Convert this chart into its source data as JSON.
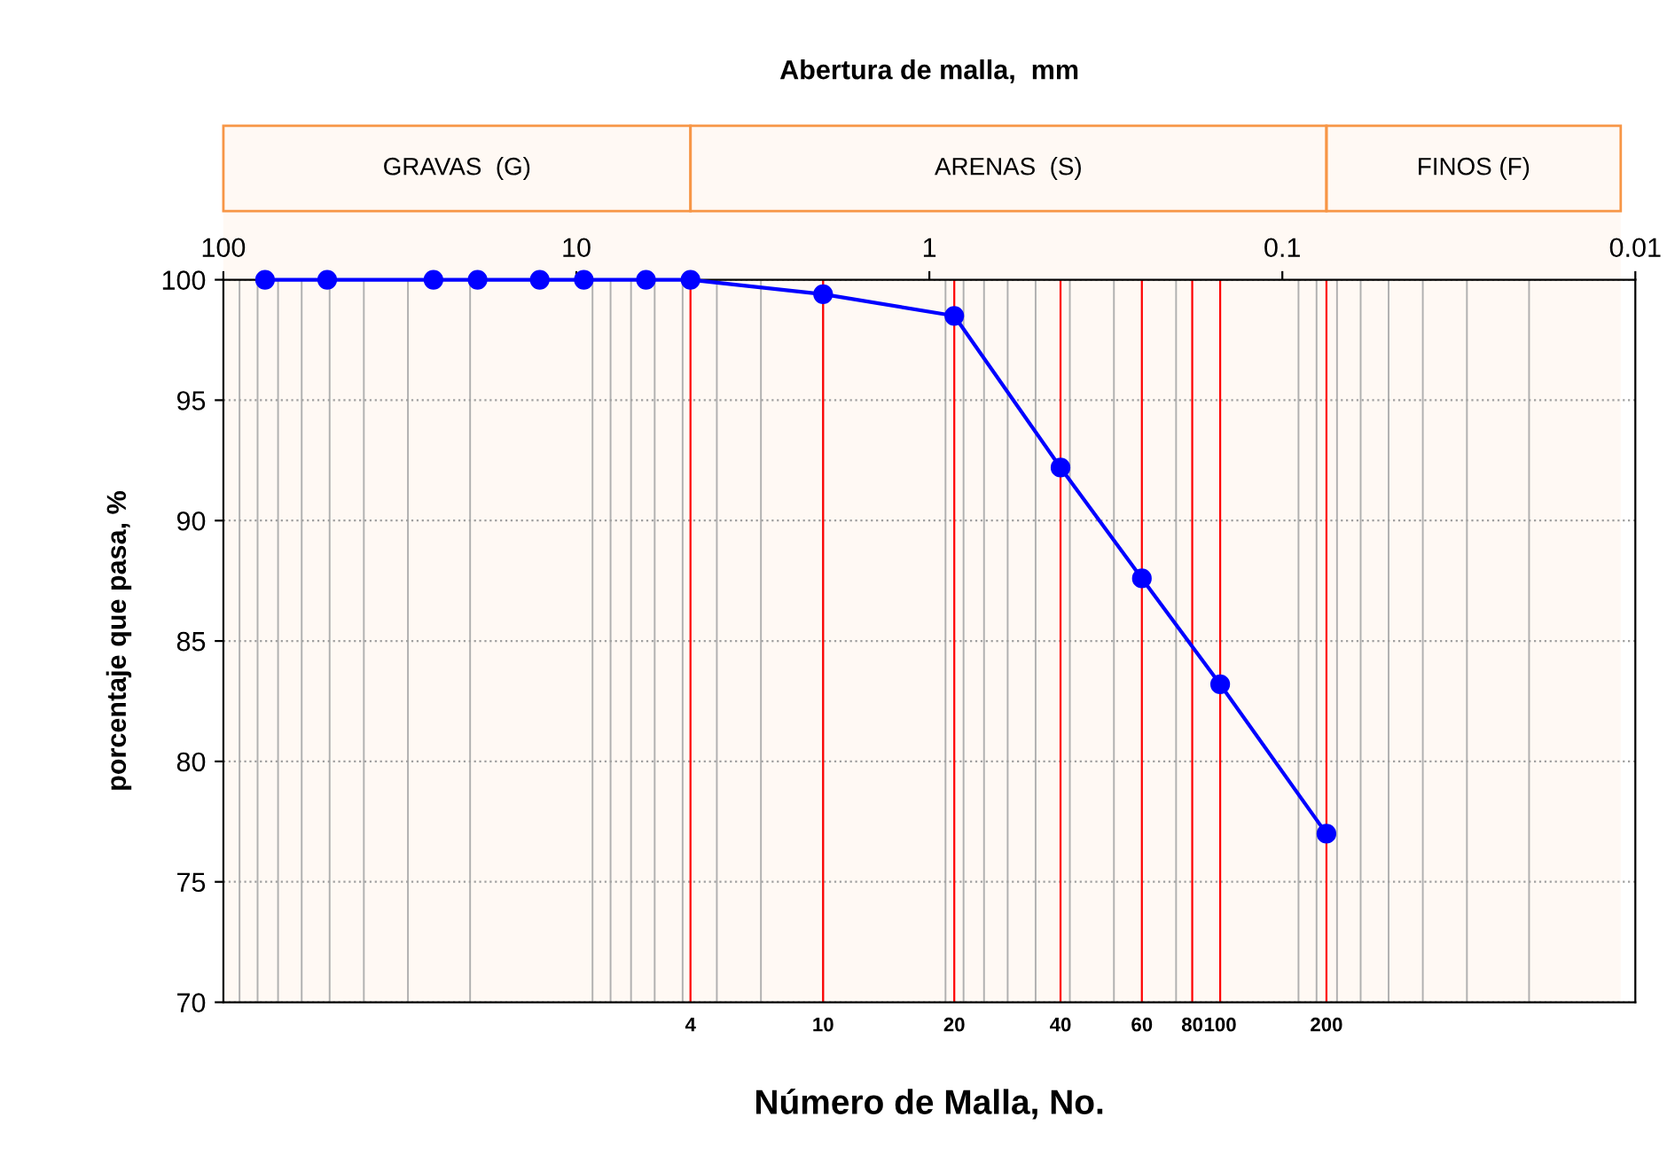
{
  "chart_data": {
    "type": "line",
    "ylabel": "porcentaje que pasa, %",
    "annotations": [
      "Número de Malla, No.",
      "Abertura de malla,  mm",
      {
        "text": "4",
        "x": 4.75,
        "y": 70
      },
      {
        "text": "10",
        "x": 2.0,
        "y": 70
      },
      {
        "text": "20",
        "x": 0.85,
        "y": 70
      },
      {
        "text": "40",
        "x": 0.425,
        "y": 70
      },
      {
        "text": "60",
        "x": 0.25,
        "y": 70
      },
      {
        "text": "80",
        "x": 0.18,
        "y": 70
      },
      {
        "text": "100",
        "x": 0.15,
        "y": 70
      },
      {
        "text": "200",
        "x": 0.075,
        "y": 70
      }
    ],
    "x": [
      76.2,
      50.8,
      25.4,
      19.05,
      12.7,
      9.525,
      6.35,
      4.75,
      2.0,
      0.85,
      0.425,
      0.25,
      0.15,
      0.075
    ],
    "series": [
      {
        "color": "#0000ff",
        "values": [
          100,
          100,
          100,
          100,
          100,
          100,
          100,
          100,
          99.4,
          98.5,
          92.2,
          87.6,
          83.2,
          77.0
        ]
      }
    ],
    "log": "x",
    "xlim": [
      100,
      0.01
    ],
    "xticks": [
      100,
      10,
      1,
      0.1,
      0.01
    ],
    "ylim": [
      70,
      100
    ],
    "yticks": [
      70,
      75,
      80,
      85,
      90,
      95,
      100
    ],
    "ref_lines": [
      {
        "axis": "x",
        "value": 4.75,
        "color": "#ff0000"
      },
      {
        "axis": "x",
        "value": 2.0,
        "color": "#ff0000"
      },
      {
        "axis": "x",
        "value": 0.85,
        "color": "#ff0000"
      },
      {
        "axis": "x",
        "value": 0.425,
        "color": "#ff0000"
      },
      {
        "axis": "x",
        "value": 0.25,
        "color": "#ff0000"
      },
      {
        "axis": "x",
        "value": 0.18,
        "color": "#ff0000"
      },
      {
        "axis": "x",
        "value": 0.15,
        "color": "#ff0000"
      },
      {
        "axis": "x",
        "value": 0.075,
        "color": "#ff0000"
      }
    ],
    "bands": [
      {
        "axis": "x",
        "from": 100,
        "to": 4.75,
        "label": "GRAVAS  (G)",
        "color": "#f79646"
      },
      {
        "axis": "x",
        "from": 4.75,
        "to": 0.075,
        "label": "ARENAS  (S)",
        "color": "#f79646"
      },
      {
        "axis": "x",
        "from": 0.075,
        "to": 0.011,
        "label": "FINOS (F)",
        "color": "#f79646"
      }
    ],
    "grid": true,
    "marker": "circle",
    "line_style": "solid"
  }
}
